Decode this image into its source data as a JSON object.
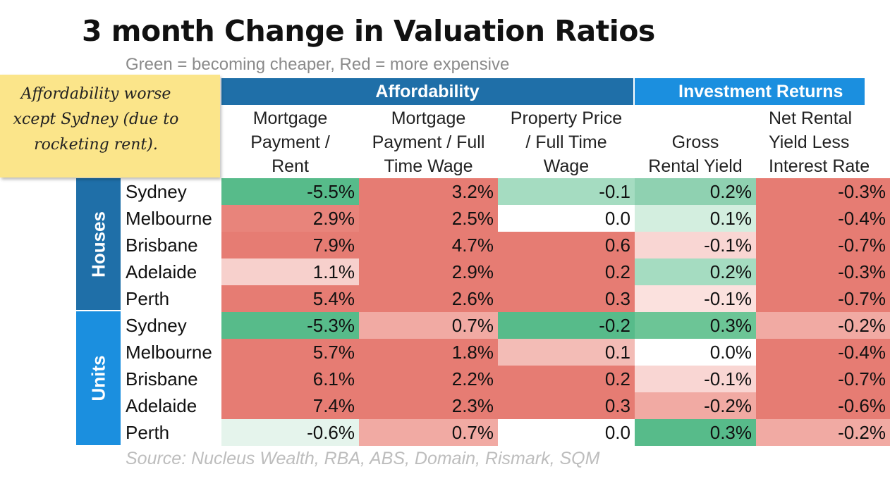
{
  "title": "3 month Change in Valuation Ratios",
  "subtitle": "Green = becoming cheaper, Red = more expensive",
  "source": "Source: Nucleus Wealth, RBA, ABS, Domain, Rismark, SQM",
  "note": "Affordability worse\nxcept Sydney (due to\nrocketing rent).",
  "colors": {
    "affordability_header": "#1f6fa8",
    "investment_header": "#1b8fdf",
    "note": "#fbe58a",
    "green": "#57bb8a",
    "red": "#e67c73"
  },
  "chart_data": {
    "type": "table",
    "column_groups": [
      {
        "name": "Affordability",
        "columns": [
          0,
          1,
          2
        ]
      },
      {
        "name": "Investment Returns",
        "columns": [
          3,
          4
        ]
      }
    ],
    "columns": [
      "Mortgage\nPayment /\nRent",
      "Mortgage\nPayment / Full\nTime Wage",
      "Property Price\n/ Full Time\nWage",
      "Gross\nRental Yield",
      "Net Rental\nYield Less\nInterest Rate"
    ],
    "row_groups": [
      {
        "name": "Houses",
        "rows": [
          {
            "city": "Sydney",
            "values": [
              "-5.5%",
              "3.2%",
              "-0.1",
              "0.2%",
              "-0.3%"
            ]
          },
          {
            "city": "Melbourne",
            "values": [
              "2.9%",
              "2.5%",
              "0.0",
              "0.1%",
              "-0.4%"
            ]
          },
          {
            "city": "Brisbane",
            "values": [
              "7.9%",
              "4.7%",
              "0.6",
              "-0.1%",
              "-0.7%"
            ]
          },
          {
            "city": "Adelaide",
            "values": [
              "1.1%",
              "2.9%",
              "0.2",
              "0.2%",
              "-0.3%"
            ]
          },
          {
            "city": "Perth",
            "values": [
              "5.4%",
              "2.6%",
              "0.3",
              "-0.1%",
              "-0.7%"
            ]
          }
        ]
      },
      {
        "name": "Units",
        "rows": [
          {
            "city": "Sydney",
            "values": [
              "-5.3%",
              "0.7%",
              "-0.2",
              "0.3%",
              "-0.2%"
            ]
          },
          {
            "city": "Melbourne",
            "values": [
              "5.7%",
              "1.8%",
              "0.1",
              "0.0%",
              "-0.4%"
            ]
          },
          {
            "city": "Brisbane",
            "values": [
              "6.1%",
              "2.2%",
              "0.2",
              "-0.1%",
              "-0.7%"
            ]
          },
          {
            "city": "Adelaide",
            "values": [
              "7.4%",
              "2.3%",
              "0.3",
              "-0.2%",
              "-0.6%"
            ]
          },
          {
            "city": "Perth",
            "values": [
              "-0.6%",
              "0.7%",
              "0.0",
              "0.3%",
              "-0.2%"
            ]
          }
        ]
      }
    ],
    "cell_colors": [
      [
        "#57bb8a",
        "#e67c73",
        "#a5dcc1",
        "#8fd1b1",
        "#e67c73"
      ],
      [
        "#e8847b",
        "#e67c73",
        "#ffffff",
        "#d3eedf",
        "#e67c73"
      ],
      [
        "#e67c73",
        "#e67c73",
        "#e67c73",
        "#f9d6d3",
        "#e67c73"
      ],
      [
        "#f7d0cc",
        "#e67c73",
        "#e67c73",
        "#a5dcc1",
        "#e67c73"
      ],
      [
        "#e67c73",
        "#e67c73",
        "#e67c73",
        "#fbe1de",
        "#e67c73"
      ],
      [
        "#57bb8a",
        "#f1aaa3",
        "#57bb8a",
        "#6cc596",
        "#f1aaa3"
      ],
      [
        "#e67c73",
        "#e67c73",
        "#f3bcb6",
        "#ffffff",
        "#e67c73"
      ],
      [
        "#e67c73",
        "#e67c73",
        "#e67c73",
        "#f9d6d3",
        "#e67c73"
      ],
      [
        "#e67c73",
        "#e67c73",
        "#e67c73",
        "#f1aaa3",
        "#e67c73"
      ],
      [
        "#e5f4ec",
        "#f1aaa3",
        "#ffffff",
        "#57bb8a",
        "#f1aaa3"
      ]
    ]
  }
}
